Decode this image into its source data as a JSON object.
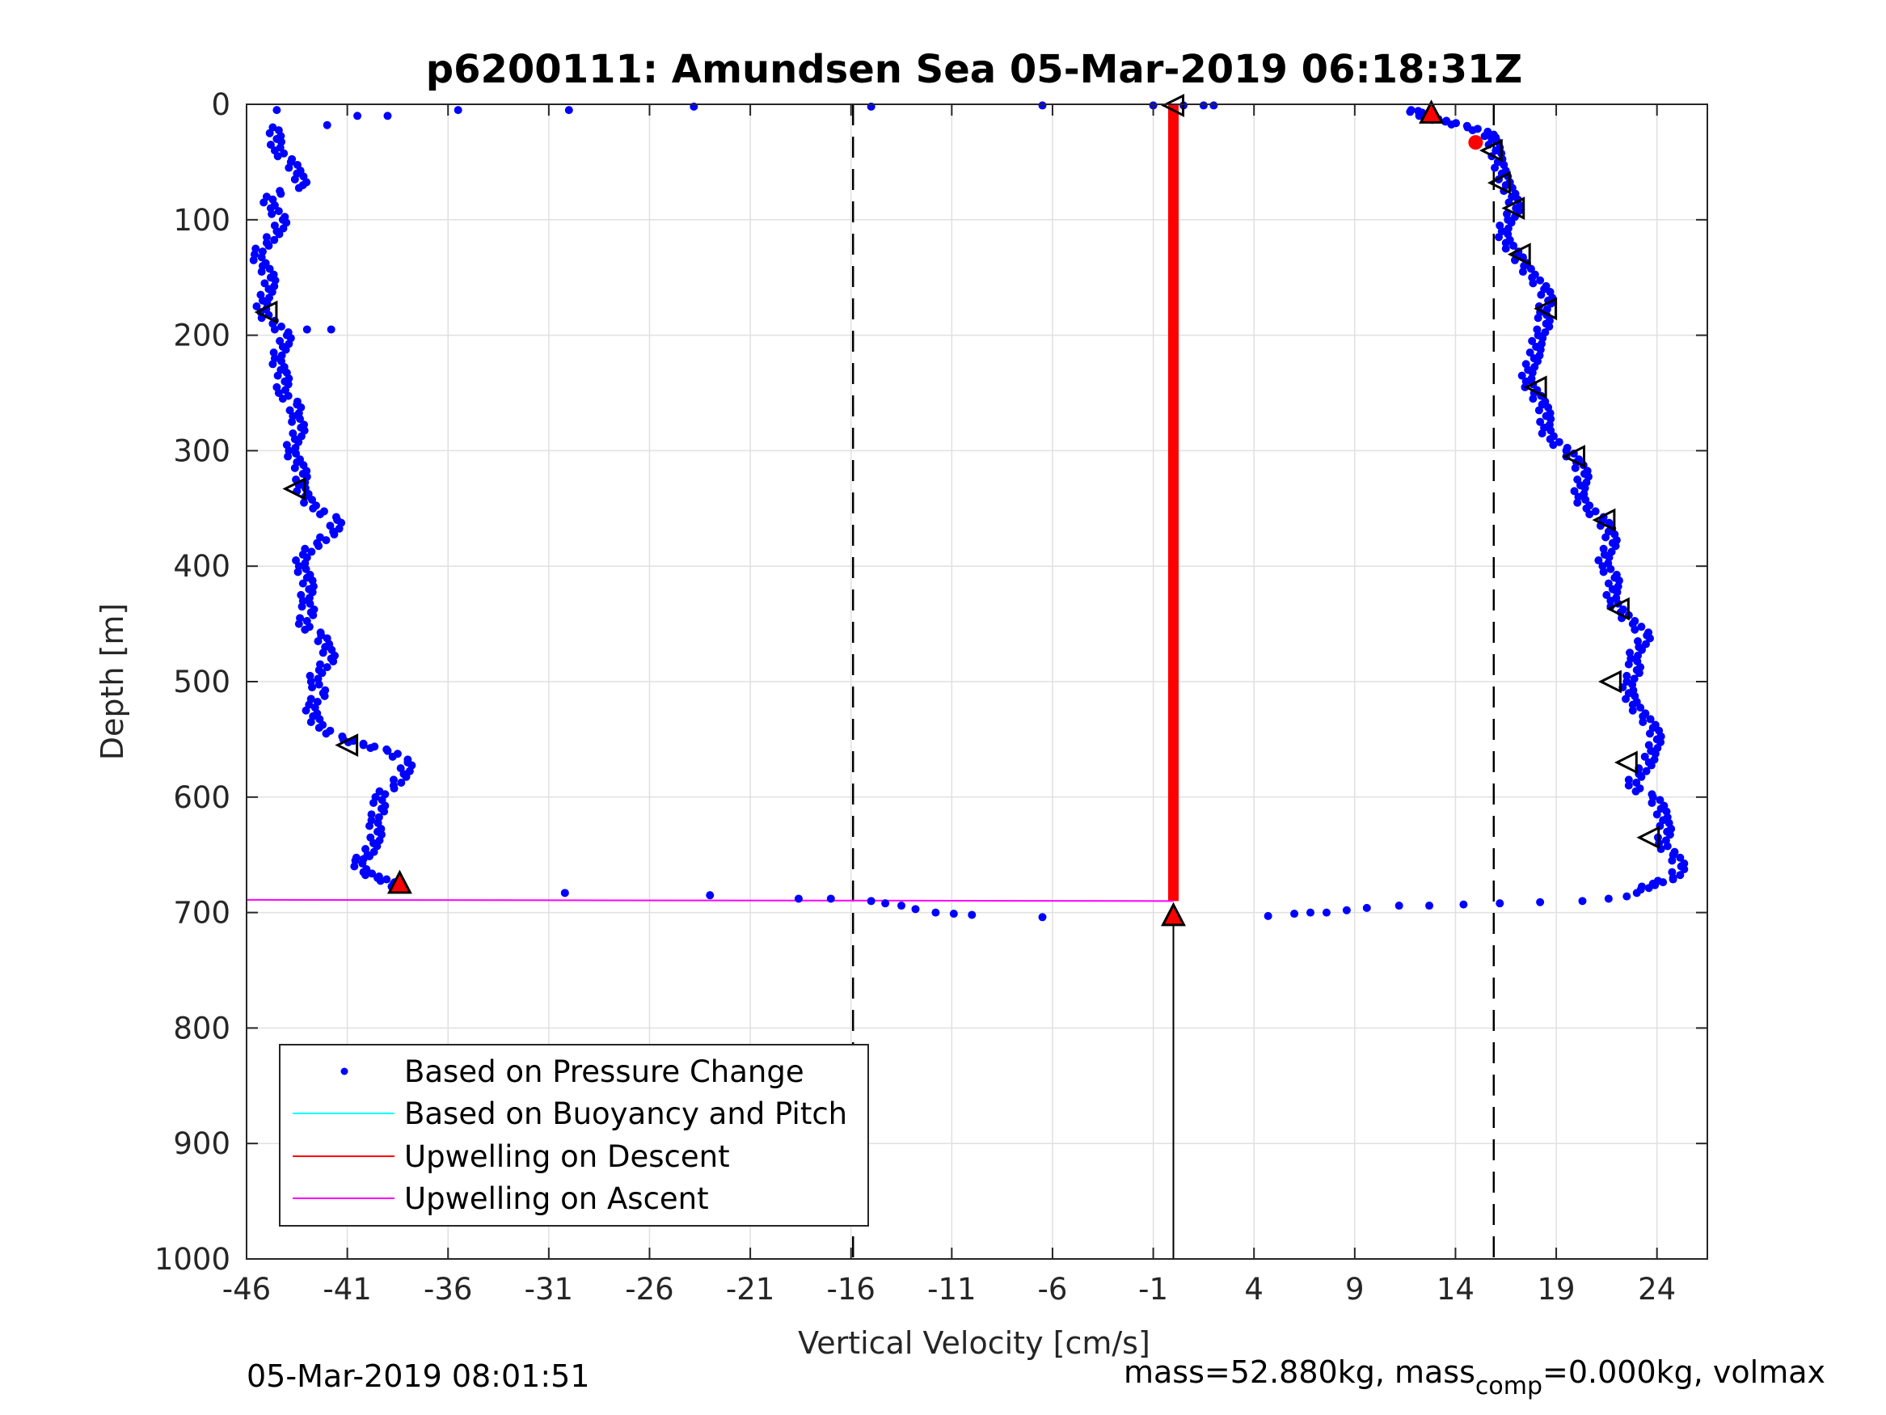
{
  "chart_data": {
    "type": "scatter",
    "title": "p6200111: Amundsen Sea 05-Mar-2019 06:18:31Z",
    "xlabel": "Vertical Velocity [cm/s]",
    "ylabel": "Depth [m]",
    "xlim": [
      -46,
      26.5
    ],
    "ylim": [
      0,
      1000
    ],
    "y_reversed": true,
    "grid": true,
    "x_ticks": [
      "-46",
      "-41",
      "-36",
      "-31",
      "-26",
      "-21",
      "-16",
      "-11",
      "-6",
      "-1",
      "4",
      "9",
      "14",
      "19",
      "24"
    ],
    "y_ticks": [
      "0",
      "100",
      "200",
      "300",
      "400",
      "500",
      "600",
      "700",
      "800",
      "900",
      "1000"
    ],
    "legend": {
      "placement": "lower-left",
      "entries": [
        {
          "label": "Based on Pressure Change",
          "color": "#0000ff",
          "marker": "dot"
        },
        {
          "label": "Based on Buoyancy and Pitch",
          "color": "#00ffff",
          "marker": "line"
        },
        {
          "label": "Upwelling on Descent",
          "color": "#ff0000",
          "marker": "line"
        },
        {
          "label": "Upwelling on Ascent",
          "color": "#ff00ff",
          "marker": "line"
        }
      ]
    },
    "reference_lines": {
      "dashed_x": [
        -15.9,
        15.9
      ],
      "solid_x_from_depth": {
        "x": 0,
        "depth": [
          700,
          1000
        ]
      }
    },
    "series": [
      {
        "name": "Based on Pressure Change",
        "color": "#0000ff",
        "descent_profile": [
          [
            -44.7,
            20
          ],
          [
            -44.5,
            30
          ],
          [
            -44.6,
            40
          ],
          [
            -43.8,
            50
          ],
          [
            -43.5,
            60
          ],
          [
            -43.2,
            70
          ],
          [
            -45.0,
            80
          ],
          [
            -44.8,
            90
          ],
          [
            -44.2,
            100
          ],
          [
            -44.5,
            110
          ],
          [
            -45.0,
            120
          ],
          [
            -45.6,
            130
          ],
          [
            -45.2,
            140
          ],
          [
            -44.8,
            150
          ],
          [
            -44.9,
            160
          ],
          [
            -45.2,
            170
          ],
          [
            -45.3,
            180
          ],
          [
            -44.7,
            190
          ],
          [
            -44.0,
            200
          ],
          [
            -44.2,
            210
          ],
          [
            -44.6,
            220
          ],
          [
            -44.3,
            230
          ],
          [
            -44.1,
            240
          ],
          [
            -44.4,
            250
          ],
          [
            -43.5,
            260
          ],
          [
            -43.7,
            270
          ],
          [
            -43.3,
            280
          ],
          [
            -43.6,
            290
          ],
          [
            -43.9,
            300
          ],
          [
            -43.5,
            310
          ],
          [
            -43.2,
            320
          ],
          [
            -43.4,
            330
          ],
          [
            -43.1,
            340
          ],
          [
            -42.7,
            350
          ],
          [
            -41.5,
            360
          ],
          [
            -41.7,
            370
          ],
          [
            -42.5,
            380
          ],
          [
            -43.2,
            390
          ],
          [
            -43.4,
            400
          ],
          [
            -43.0,
            410
          ],
          [
            -42.9,
            420
          ],
          [
            -43.2,
            430
          ],
          [
            -42.8,
            440
          ],
          [
            -43.4,
            450
          ],
          [
            -42.3,
            460
          ],
          [
            -42.1,
            470
          ],
          [
            -41.8,
            480
          ],
          [
            -42.4,
            490
          ],
          [
            -42.8,
            500
          ],
          [
            -42.2,
            510
          ],
          [
            -42.9,
            520
          ],
          [
            -42.7,
            530
          ],
          [
            -42.4,
            540
          ],
          [
            -41.2,
            550
          ],
          [
            -40.2,
            555
          ],
          [
            -39.0,
            560
          ],
          [
            -38.0,
            570
          ],
          [
            -38.2,
            580
          ],
          [
            -38.7,
            590
          ],
          [
            -39.6,
            600
          ],
          [
            -39.3,
            610
          ],
          [
            -39.8,
            620
          ],
          [
            -39.5,
            630
          ],
          [
            -39.7,
            640
          ],
          [
            -40.0,
            650
          ],
          [
            -40.6,
            655
          ],
          [
            -40.2,
            665
          ],
          [
            -39.5,
            670
          ],
          [
            -38.7,
            675
          ],
          [
            -38.4,
            680
          ]
        ],
        "surface_scatter": [
          [
            -44.5,
            5
          ],
          [
            -40.5,
            10
          ],
          [
            -39.0,
            10
          ],
          [
            -42.0,
            18
          ],
          [
            -35.5,
            5
          ],
          [
            -30.0,
            5
          ],
          [
            -23.8,
            2
          ],
          [
            -15.0,
            2
          ],
          [
            -6.5,
            1
          ],
          [
            -1.0,
            1
          ],
          [
            0.5,
            1
          ],
          [
            1.5,
            1
          ],
          [
            2.0,
            1
          ],
          [
            -41.8,
            195
          ],
          [
            -43.0,
            195
          ]
        ],
        "bottom_scatter": [
          [
            -30.2,
            683
          ],
          [
            -23.0,
            685
          ],
          [
            -18.6,
            688
          ],
          [
            -17.0,
            688
          ],
          [
            -15.0,
            690
          ],
          [
            -14.3,
            692
          ],
          [
            -13.5,
            694
          ],
          [
            -12.8,
            697
          ],
          [
            -11.8,
            700
          ],
          [
            -10.9,
            701
          ],
          [
            -10.0,
            702
          ],
          [
            -6.5,
            704
          ],
          [
            4.7,
            703
          ],
          [
            6.0,
            701
          ],
          [
            6.8,
            700
          ],
          [
            7.6,
            700
          ],
          [
            8.6,
            698
          ],
          [
            9.6,
            696
          ],
          [
            11.2,
            694
          ],
          [
            12.7,
            694
          ],
          [
            14.4,
            693
          ],
          [
            16.2,
            692
          ],
          [
            18.2,
            691
          ],
          [
            20.3,
            690
          ],
          [
            21.6,
            688
          ],
          [
            22.5,
            686
          ],
          [
            23.0,
            683
          ]
        ],
        "ascent_profile": [
          [
            11.8,
            5
          ],
          [
            12.2,
            8
          ],
          [
            12.7,
            12
          ],
          [
            13.5,
            15
          ],
          [
            14.6,
            20
          ],
          [
            15.6,
            25
          ],
          [
            15.8,
            30
          ],
          [
            16.0,
            40
          ],
          [
            16.1,
            50
          ],
          [
            16.3,
            60
          ],
          [
            16.5,
            70
          ],
          [
            16.8,
            80
          ],
          [
            17.0,
            90
          ],
          [
            16.6,
            100
          ],
          [
            16.3,
            110
          ],
          [
            16.5,
            120
          ],
          [
            17.0,
            130
          ],
          [
            17.4,
            140
          ],
          [
            17.8,
            150
          ],
          [
            18.4,
            160
          ],
          [
            18.6,
            170
          ],
          [
            18.2,
            180
          ],
          [
            18.5,
            190
          ],
          [
            18.1,
            200
          ],
          [
            18.0,
            210
          ],
          [
            17.9,
            220
          ],
          [
            17.6,
            230
          ],
          [
            17.5,
            240
          ],
          [
            17.9,
            250
          ],
          [
            18.3,
            260
          ],
          [
            18.5,
            270
          ],
          [
            18.4,
            280
          ],
          [
            18.7,
            290
          ],
          [
            19.5,
            300
          ],
          [
            20.0,
            310
          ],
          [
            20.4,
            320
          ],
          [
            20.2,
            330
          ],
          [
            20.1,
            340
          ],
          [
            20.5,
            350
          ],
          [
            21.3,
            360
          ],
          [
            21.6,
            370
          ],
          [
            21.8,
            380
          ],
          [
            21.4,
            390
          ],
          [
            21.3,
            400
          ],
          [
            21.9,
            410
          ],
          [
            21.8,
            420
          ],
          [
            21.7,
            430
          ],
          [
            22.2,
            440
          ],
          [
            22.8,
            450
          ],
          [
            23.5,
            460
          ],
          [
            23.1,
            470
          ],
          [
            22.7,
            480
          ],
          [
            23.0,
            490
          ],
          [
            22.5,
            500
          ],
          [
            22.6,
            510
          ],
          [
            22.8,
            520
          ],
          [
            23.3,
            530
          ],
          [
            23.8,
            540
          ],
          [
            24.0,
            550
          ],
          [
            23.7,
            560
          ],
          [
            23.6,
            570
          ],
          [
            23.1,
            580
          ],
          [
            22.6,
            590
          ],
          [
            23.8,
            600
          ],
          [
            24.2,
            610
          ],
          [
            24.3,
            620
          ],
          [
            24.5,
            630
          ],
          [
            24.1,
            640
          ],
          [
            24.8,
            650
          ],
          [
            25.2,
            660
          ],
          [
            24.8,
            670
          ],
          [
            23.8,
            675
          ],
          [
            23.2,
            680
          ]
        ]
      },
      {
        "name": "Upwelling on Descent",
        "color": "#ff0000",
        "segments": [
          {
            "x": 0,
            "depth": [
              0,
              690
            ]
          },
          {
            "x": 15.0,
            "depth": [
              33,
              33
            ]
          }
        ]
      },
      {
        "name": "Upwelling on Ascent",
        "color": "#ff00ff",
        "segments": [
          {
            "x": [
              -46,
              0
            ],
            "depth": [
              0,
              0
            ]
          },
          {
            "x": [
              -46,
              0
            ],
            "depth": [
              689,
              690
            ]
          }
        ]
      }
    ],
    "triangle_markers": {
      "open_left": [
        [
          -45.0,
          180
        ],
        [
          -43.6,
          333
        ],
        [
          -41.0,
          555
        ],
        [
          15.8,
          40
        ],
        [
          16.2,
          68
        ],
        [
          16.9,
          90
        ],
        [
          17.2,
          130
        ],
        [
          18.5,
          177
        ],
        [
          18.0,
          245
        ],
        [
          19.9,
          305
        ],
        [
          21.4,
          360
        ],
        [
          22.1,
          437
        ],
        [
          21.7,
          500
        ],
        [
          22.5,
          570
        ],
        [
          23.6,
          635
        ],
        [
          0,
          1
        ]
      ],
      "filled_up": [
        {
          "x": 12.8,
          "depth": 8,
          "color": "#ff0000"
        },
        {
          "x": -38.4,
          "depth": 675,
          "color": "#ff0000"
        },
        {
          "x": 0,
          "depth": 703,
          "color": "#ff0000"
        }
      ]
    }
  },
  "footer": {
    "timestamp": "05-Mar-2019 08:01:51",
    "mass_prefix": "mass=52.880kg, mass",
    "mass_sub": "comp",
    "mass_suffix": "=0.000kg, volmax"
  }
}
